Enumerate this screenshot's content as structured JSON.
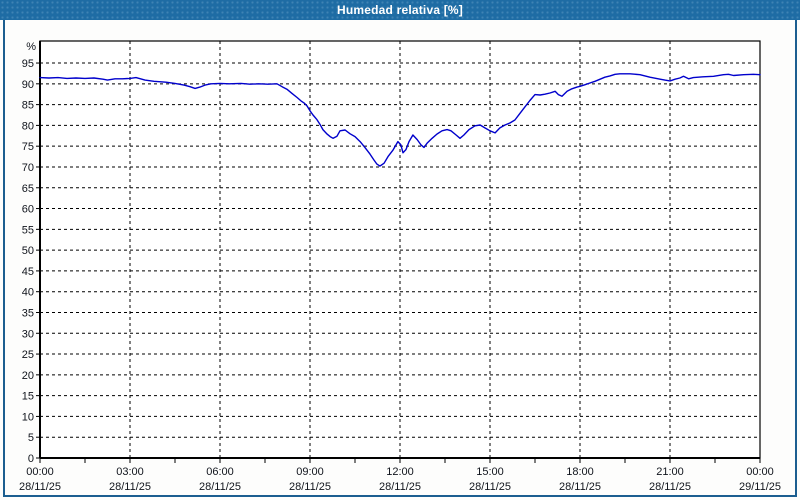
{
  "header": {
    "title": "Humedad relativa [%]"
  },
  "chart_data": {
    "type": "line",
    "title": "Humedad relativa [%]",
    "ylabel_unit": "%",
    "ylim": [
      0,
      100.3
    ],
    "y_tick_step": 5,
    "y_tick_labels": [
      "0",
      "5",
      "10",
      "15",
      "20",
      "25",
      "30",
      "35",
      "40",
      "45",
      "50",
      "55",
      "60",
      "65",
      "70",
      "75",
      "80",
      "85",
      "90",
      "95"
    ],
    "xlim_hours": [
      0,
      24
    ],
    "x_ticks": [
      {
        "hour": 0,
        "time": "00:00",
        "date": "28/11/25"
      },
      {
        "hour": 3,
        "time": "03:00",
        "date": "28/11/25"
      },
      {
        "hour": 6,
        "time": "06:00",
        "date": "28/11/25"
      },
      {
        "hour": 9,
        "time": "09:00",
        "date": "28/11/25"
      },
      {
        "hour": 12,
        "time": "12:00",
        "date": "28/11/25"
      },
      {
        "hour": 15,
        "time": "15:00",
        "date": "28/11/25"
      },
      {
        "hour": 18,
        "time": "18:00",
        "date": "28/11/25"
      },
      {
        "hour": 21,
        "time": "21:00",
        "date": "28/11/25"
      },
      {
        "hour": 24,
        "time": "00:00",
        "date": "29/11/25"
      }
    ],
    "grid": "dashed-black",
    "legend": "none",
    "line_color": "#0000cc",
    "series_name": "Humedad relativa",
    "points": [
      [
        0,
        91.5
      ],
      [
        0.3,
        91.4
      ],
      [
        0.6,
        91.5
      ],
      [
        0.9,
        91.3
      ],
      [
        1.2,
        91.4
      ],
      [
        1.5,
        91.3
      ],
      [
        1.8,
        91.4
      ],
      [
        2.1,
        91.1
      ],
      [
        2.25,
        90.9
      ],
      [
        2.5,
        91.2
      ],
      [
        2.75,
        91.2
      ],
      [
        3,
        91.3
      ],
      [
        3.2,
        91.5
      ],
      [
        3.5,
        90.9
      ],
      [
        3.8,
        90.6
      ],
      [
        4.2,
        90.4
      ],
      [
        4.5,
        90.1
      ],
      [
        4.8,
        89.7
      ],
      [
        5,
        89.3
      ],
      [
        5.17,
        88.9
      ],
      [
        5.33,
        89.2
      ],
      [
        5.5,
        89.7
      ],
      [
        5.7,
        90
      ],
      [
        6,
        90.1
      ],
      [
        6.3,
        90
      ],
      [
        6.7,
        90.1
      ],
      [
        7,
        89.9
      ],
      [
        7.3,
        90
      ],
      [
        7.6,
        89.9
      ],
      [
        7.9,
        90
      ],
      [
        8.07,
        89.3
      ],
      [
        8.23,
        88.7
      ],
      [
        8.4,
        87.7
      ],
      [
        8.57,
        86.7
      ],
      [
        8.7,
        85.9
      ],
      [
        8.8,
        85.4
      ],
      [
        8.9,
        84.7
      ],
      [
        9,
        83.5
      ],
      [
        9.1,
        82.5
      ],
      [
        9.23,
        81.4
      ],
      [
        9.33,
        80.3
      ],
      [
        9.43,
        79
      ],
      [
        9.57,
        77.9
      ],
      [
        9.67,
        77.3
      ],
      [
        9.77,
        76.9
      ],
      [
        9.9,
        77.4
      ],
      [
        10,
        78.7
      ],
      [
        10.17,
        78.9
      ],
      [
        10.33,
        78
      ],
      [
        10.5,
        77.3
      ],
      [
        10.67,
        76.1
      ],
      [
        10.83,
        74.7
      ],
      [
        11,
        73.1
      ],
      [
        11.12,
        71.8
      ],
      [
        11.23,
        70.7
      ],
      [
        11.33,
        70.2
      ],
      [
        11.47,
        70.9
      ],
      [
        11.6,
        72.5
      ],
      [
        11.77,
        74.1
      ],
      [
        11.93,
        76.1
      ],
      [
        12.03,
        75.3
      ],
      [
        12.1,
        73.4
      ],
      [
        12.2,
        74.2
      ],
      [
        12.3,
        76.1
      ],
      [
        12.43,
        77.7
      ],
      [
        12.57,
        76.6
      ],
      [
        12.7,
        75.3
      ],
      [
        12.8,
        74.7
      ],
      [
        12.9,
        75.7
      ],
      [
        13.07,
        76.9
      ],
      [
        13.23,
        77.9
      ],
      [
        13.4,
        78.7
      ],
      [
        13.57,
        79
      ],
      [
        13.7,
        78.7
      ],
      [
        13.87,
        77.7
      ],
      [
        14,
        76.9
      ],
      [
        14.13,
        77.7
      ],
      [
        14.3,
        79
      ],
      [
        14.5,
        79.9
      ],
      [
        14.67,
        80.1
      ],
      [
        14.83,
        79.4
      ],
      [
        15,
        78.7
      ],
      [
        15.17,
        78.2
      ],
      [
        15.33,
        79.4
      ],
      [
        15.5,
        80.1
      ],
      [
        15.67,
        80.6
      ],
      [
        15.83,
        81.3
      ],
      [
        16,
        82.9
      ],
      [
        16.17,
        84.5
      ],
      [
        16.33,
        86
      ],
      [
        16.5,
        87.4
      ],
      [
        16.67,
        87.3
      ],
      [
        16.83,
        87.5
      ],
      [
        17,
        87.8
      ],
      [
        17.17,
        88.2
      ],
      [
        17.28,
        87.4
      ],
      [
        17.4,
        87
      ],
      [
        17.57,
        88.2
      ],
      [
        17.73,
        88.8
      ],
      [
        17.9,
        89.2
      ],
      [
        18,
        89.4
      ],
      [
        18.17,
        89.8
      ],
      [
        18.33,
        90.2
      ],
      [
        18.5,
        90.6
      ],
      [
        18.67,
        91.1
      ],
      [
        18.83,
        91.6
      ],
      [
        19,
        91.9
      ],
      [
        19.17,
        92.3
      ],
      [
        19.33,
        92.4
      ],
      [
        19.67,
        92.4
      ],
      [
        20,
        92.2
      ],
      [
        20.33,
        91.6
      ],
      [
        20.67,
        91.1
      ],
      [
        20.83,
        90.9
      ],
      [
        21,
        90.7
      ],
      [
        21.17,
        91.1
      ],
      [
        21.33,
        91.4
      ],
      [
        21.45,
        91.8
      ],
      [
        21.62,
        91.2
      ],
      [
        21.78,
        91.5
      ],
      [
        22.1,
        91.7
      ],
      [
        22.45,
        91.8
      ],
      [
        22.78,
        92.2
      ],
      [
        22.95,
        92.3
      ],
      [
        23.12,
        92
      ],
      [
        23.45,
        92.2
      ],
      [
        23.78,
        92.3
      ],
      [
        24,
        92.2
      ]
    ],
    "colors": {
      "titlebar_bg": "#1e6ca4",
      "panel_border": "#1c5e90",
      "plot_bg": "#ffffff",
      "grid": "#000000",
      "line": "#0000cc"
    }
  }
}
